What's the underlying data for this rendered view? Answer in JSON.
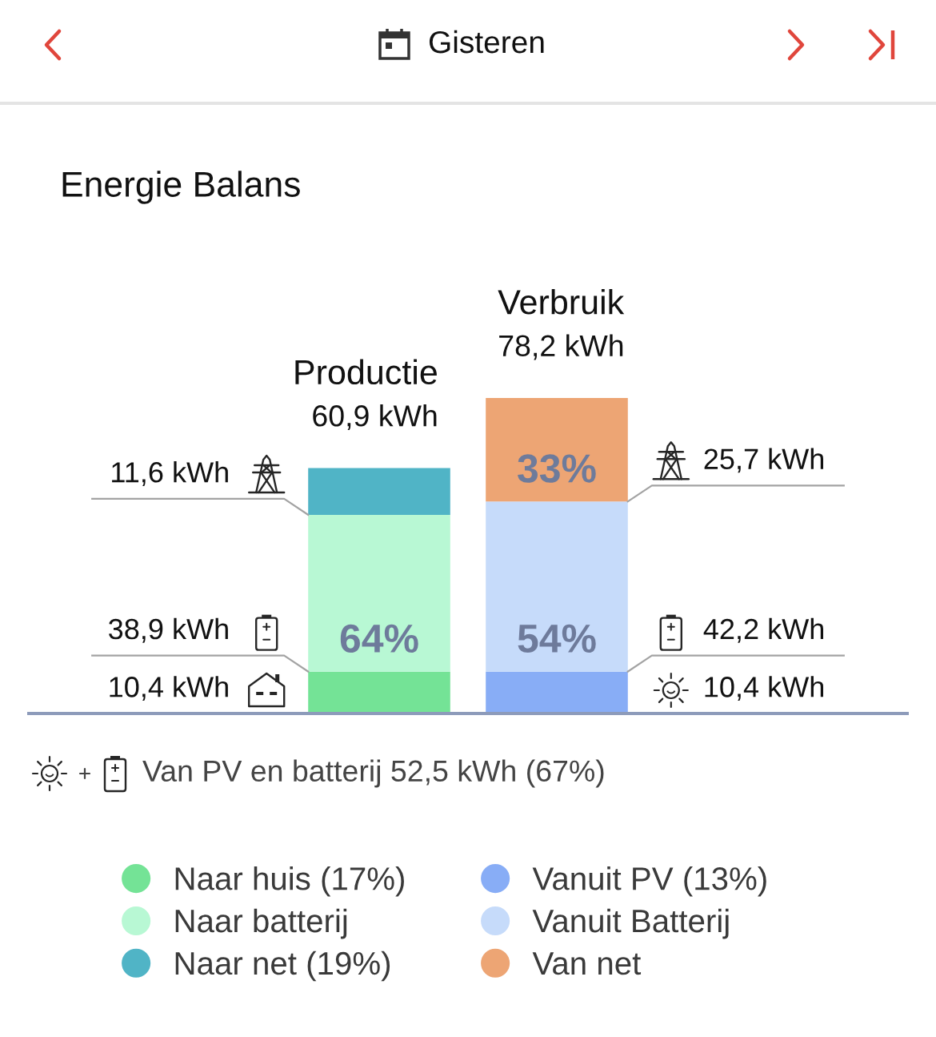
{
  "chart_data": {
    "type": "bar",
    "stacked": true,
    "title": "Energie Balans",
    "categories": [
      "Productie",
      "Verbruik"
    ],
    "totals": [
      "60,9 kWh",
      "78,2 kWh"
    ],
    "series": [
      {
        "name": "Naar huis (17%)",
        "color": "#74e396",
        "values": [
          10.4,
          null
        ],
        "value_labels": [
          "10,4 kWh",
          null
        ]
      },
      {
        "name": "Naar batterij",
        "color": "#b8f8d4",
        "values": [
          38.9,
          null
        ],
        "value_labels": [
          "38,9 kWh",
          null
        ]
      },
      {
        "name": "Naar net (19%)",
        "color": "#50b4c6",
        "values": [
          11.6,
          null
        ],
        "value_labels": [
          "11,6 kWh",
          null
        ]
      },
      {
        "name": "Vanuit PV (13%)",
        "color": "#88adf6",
        "values": [
          null,
          10.4
        ],
        "value_labels": [
          null,
          "10,4 kWh"
        ]
      },
      {
        "name": "Vanuit Batterij",
        "color": "#c6dbfa",
        "values": [
          null,
          42.2
        ],
        "value_labels": [
          null,
          "42,2 kWh"
        ]
      },
      {
        "name": "Van net",
        "color": "#eda574",
        "values": [
          null,
          25.7
        ],
        "value_labels": [
          null,
          "25,7 kWh"
        ]
      }
    ],
    "annotations": [
      "Gisteren",
      {
        "text": "64%",
        "x": "Productie",
        "y": 10.4
      },
      {
        "text": "54%",
        "x": "Verbruik",
        "y": 10.4
      },
      {
        "text": "33%",
        "x": "Verbruik",
        "y": 52.6
      },
      "Van PV en batterij 52,5 kWh (67%)"
    ],
    "legend": "bottom"
  }
}
